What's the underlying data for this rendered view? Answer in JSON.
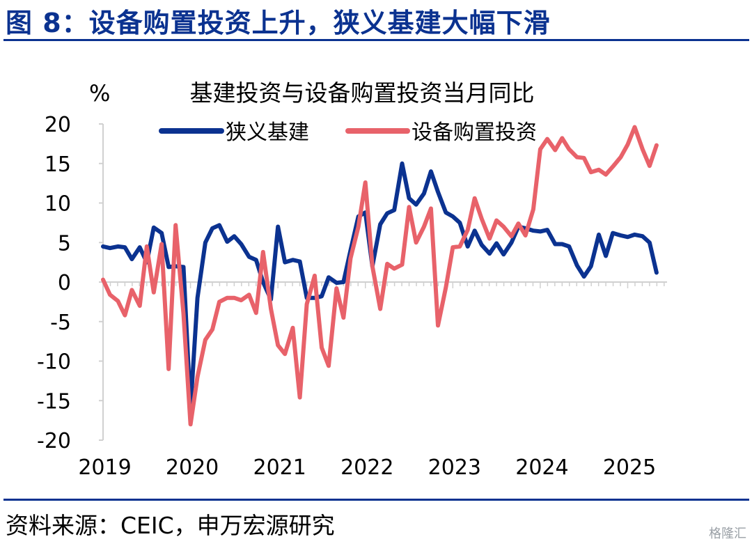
{
  "figure": {
    "title": "图 8：设备购置投资上升，狭义基建大幅下滑",
    "source": "资料来源：CEIC，申万宏源研究",
    "watermark": "格隆汇"
  },
  "colors": {
    "brand": "#0b3290",
    "series_infra": "#0b3290",
    "series_equipment": "#e8626a",
    "axis": "#d0d0d0"
  },
  "chart_data": {
    "type": "line",
    "title": "基建投资与设备购置投资当月同比",
    "ylabel": "%",
    "xlabel": "",
    "ylim": [
      -20,
      20
    ],
    "yticks": [
      20,
      15,
      10,
      5,
      0,
      -5,
      -10,
      -15,
      -20
    ],
    "xlim": [
      2019.0,
      2025.45
    ],
    "year_labels": [
      "2019",
      "2020",
      "2021",
      "2022",
      "2023",
      "2024",
      "2025"
    ],
    "legend_position": "top",
    "series": [
      {
        "name": "狭义基建",
        "color": "#0b3290",
        "x": [
          2019.0,
          2019.08,
          2019.17,
          2019.25,
          2019.33,
          2019.42,
          2019.5,
          2019.58,
          2019.67,
          2019.75,
          2019.83,
          2019.92,
          2020.0,
          2020.08,
          2020.17,
          2020.25,
          2020.33,
          2020.42,
          2020.5,
          2020.58,
          2020.67,
          2020.75,
          2020.83,
          2020.92,
          2021.0,
          2021.08,
          2021.17,
          2021.25,
          2021.33,
          2021.42,
          2021.5,
          2021.58,
          2021.67,
          2021.75,
          2021.83,
          2021.92,
          2022.0,
          2022.08,
          2022.17,
          2022.25,
          2022.33,
          2022.42,
          2022.5,
          2022.58,
          2022.67,
          2022.75,
          2022.83,
          2022.92,
          2023.0,
          2023.08,
          2023.17,
          2023.25,
          2023.33,
          2023.42,
          2023.5,
          2023.58,
          2023.67,
          2023.75,
          2023.83,
          2023.92,
          2024.0,
          2024.08,
          2024.17,
          2024.25,
          2024.33,
          2024.42,
          2024.5,
          2024.58,
          2024.67,
          2024.75,
          2024.83,
          2024.92,
          2025.0,
          2025.08,
          2025.17,
          2025.25,
          2025.33
        ],
        "values": [
          4.5,
          4.3,
          4.5,
          4.4,
          2.9,
          4.4,
          2.5,
          6.9,
          6.2,
          1.9,
          2.0,
          1.9,
          -16.0,
          -2.0,
          5.0,
          6.8,
          7.2,
          5.1,
          5.8,
          4.8,
          3.2,
          2.8,
          0.0,
          -2.2,
          7.0,
          2.5,
          2.8,
          2.6,
          -2.0,
          -2.0,
          -1.8,
          0.6,
          -0.1,
          0.0,
          4.0,
          8.3,
          8.8,
          2.0,
          7.3,
          8.7,
          9.1,
          15.0,
          10.6,
          9.8,
          11.2,
          14.0,
          11.4,
          8.8,
          8.3,
          7.5,
          4.5,
          6.5,
          4.7,
          3.6,
          4.9,
          3.5,
          5.0,
          7.0,
          6.8,
          6.5,
          6.4,
          6.6,
          4.8,
          4.8,
          4.5,
          2.1,
          0.7,
          2.0,
          6.0,
          3.3,
          6.2,
          5.9,
          5.7,
          6.0,
          5.8,
          5.0,
          1.2
        ]
      },
      {
        "name": "设备购置投资",
        "color": "#e8626a",
        "x": [
          2019.0,
          2019.08,
          2019.17,
          2019.25,
          2019.33,
          2019.42,
          2019.5,
          2019.58,
          2019.67,
          2019.75,
          2019.83,
          2019.92,
          2020.0,
          2020.08,
          2020.17,
          2020.25,
          2020.33,
          2020.42,
          2020.5,
          2020.58,
          2020.67,
          2020.75,
          2020.83,
          2020.92,
          2021.0,
          2021.08,
          2021.17,
          2021.25,
          2021.33,
          2021.42,
          2021.5,
          2021.58,
          2021.67,
          2021.75,
          2021.83,
          2021.92,
          2022.0,
          2022.08,
          2022.17,
          2022.25,
          2022.33,
          2022.42,
          2022.5,
          2022.58,
          2022.67,
          2022.75,
          2022.83,
          2022.92,
          2023.0,
          2023.08,
          2023.17,
          2023.25,
          2023.33,
          2023.42,
          2023.5,
          2023.58,
          2023.67,
          2023.75,
          2023.83,
          2023.92,
          2024.0,
          2024.08,
          2024.17,
          2024.25,
          2024.33,
          2024.42,
          2024.5,
          2024.58,
          2024.67,
          2024.75,
          2024.83,
          2024.92,
          2025.0,
          2025.08,
          2025.17,
          2025.25,
          2025.33
        ],
        "values": [
          0.3,
          -1.6,
          -2.4,
          -4.2,
          -1.0,
          -3.0,
          4.5,
          -1.3,
          4.8,
          -11.0,
          7.2,
          -4.0,
          -18.0,
          -12.0,
          -7.3,
          -6.0,
          -2.5,
          -2.0,
          -2.0,
          -2.3,
          -1.6,
          -3.9,
          3.8,
          -3.4,
          -8.0,
          -9.1,
          -5.8,
          -14.6,
          -2.8,
          0.8,
          -8.3,
          -10.6,
          -0.8,
          -4.5,
          3.0,
          7.0,
          12.6,
          2.0,
          -3.4,
          2.3,
          1.7,
          2.2,
          9.5,
          5.0,
          7.0,
          9.3,
          -5.5,
          -0.7,
          4.4,
          4.5,
          6.6,
          10.6,
          8.0,
          5.5,
          7.8,
          7.0,
          5.8,
          7.4,
          5.9,
          9.2,
          16.8,
          18.1,
          16.7,
          18.2,
          16.8,
          15.8,
          15.7,
          13.9,
          14.2,
          13.6,
          14.6,
          15.8,
          17.4,
          19.6,
          16.8,
          14.7,
          17.3
        ]
      }
    ]
  }
}
